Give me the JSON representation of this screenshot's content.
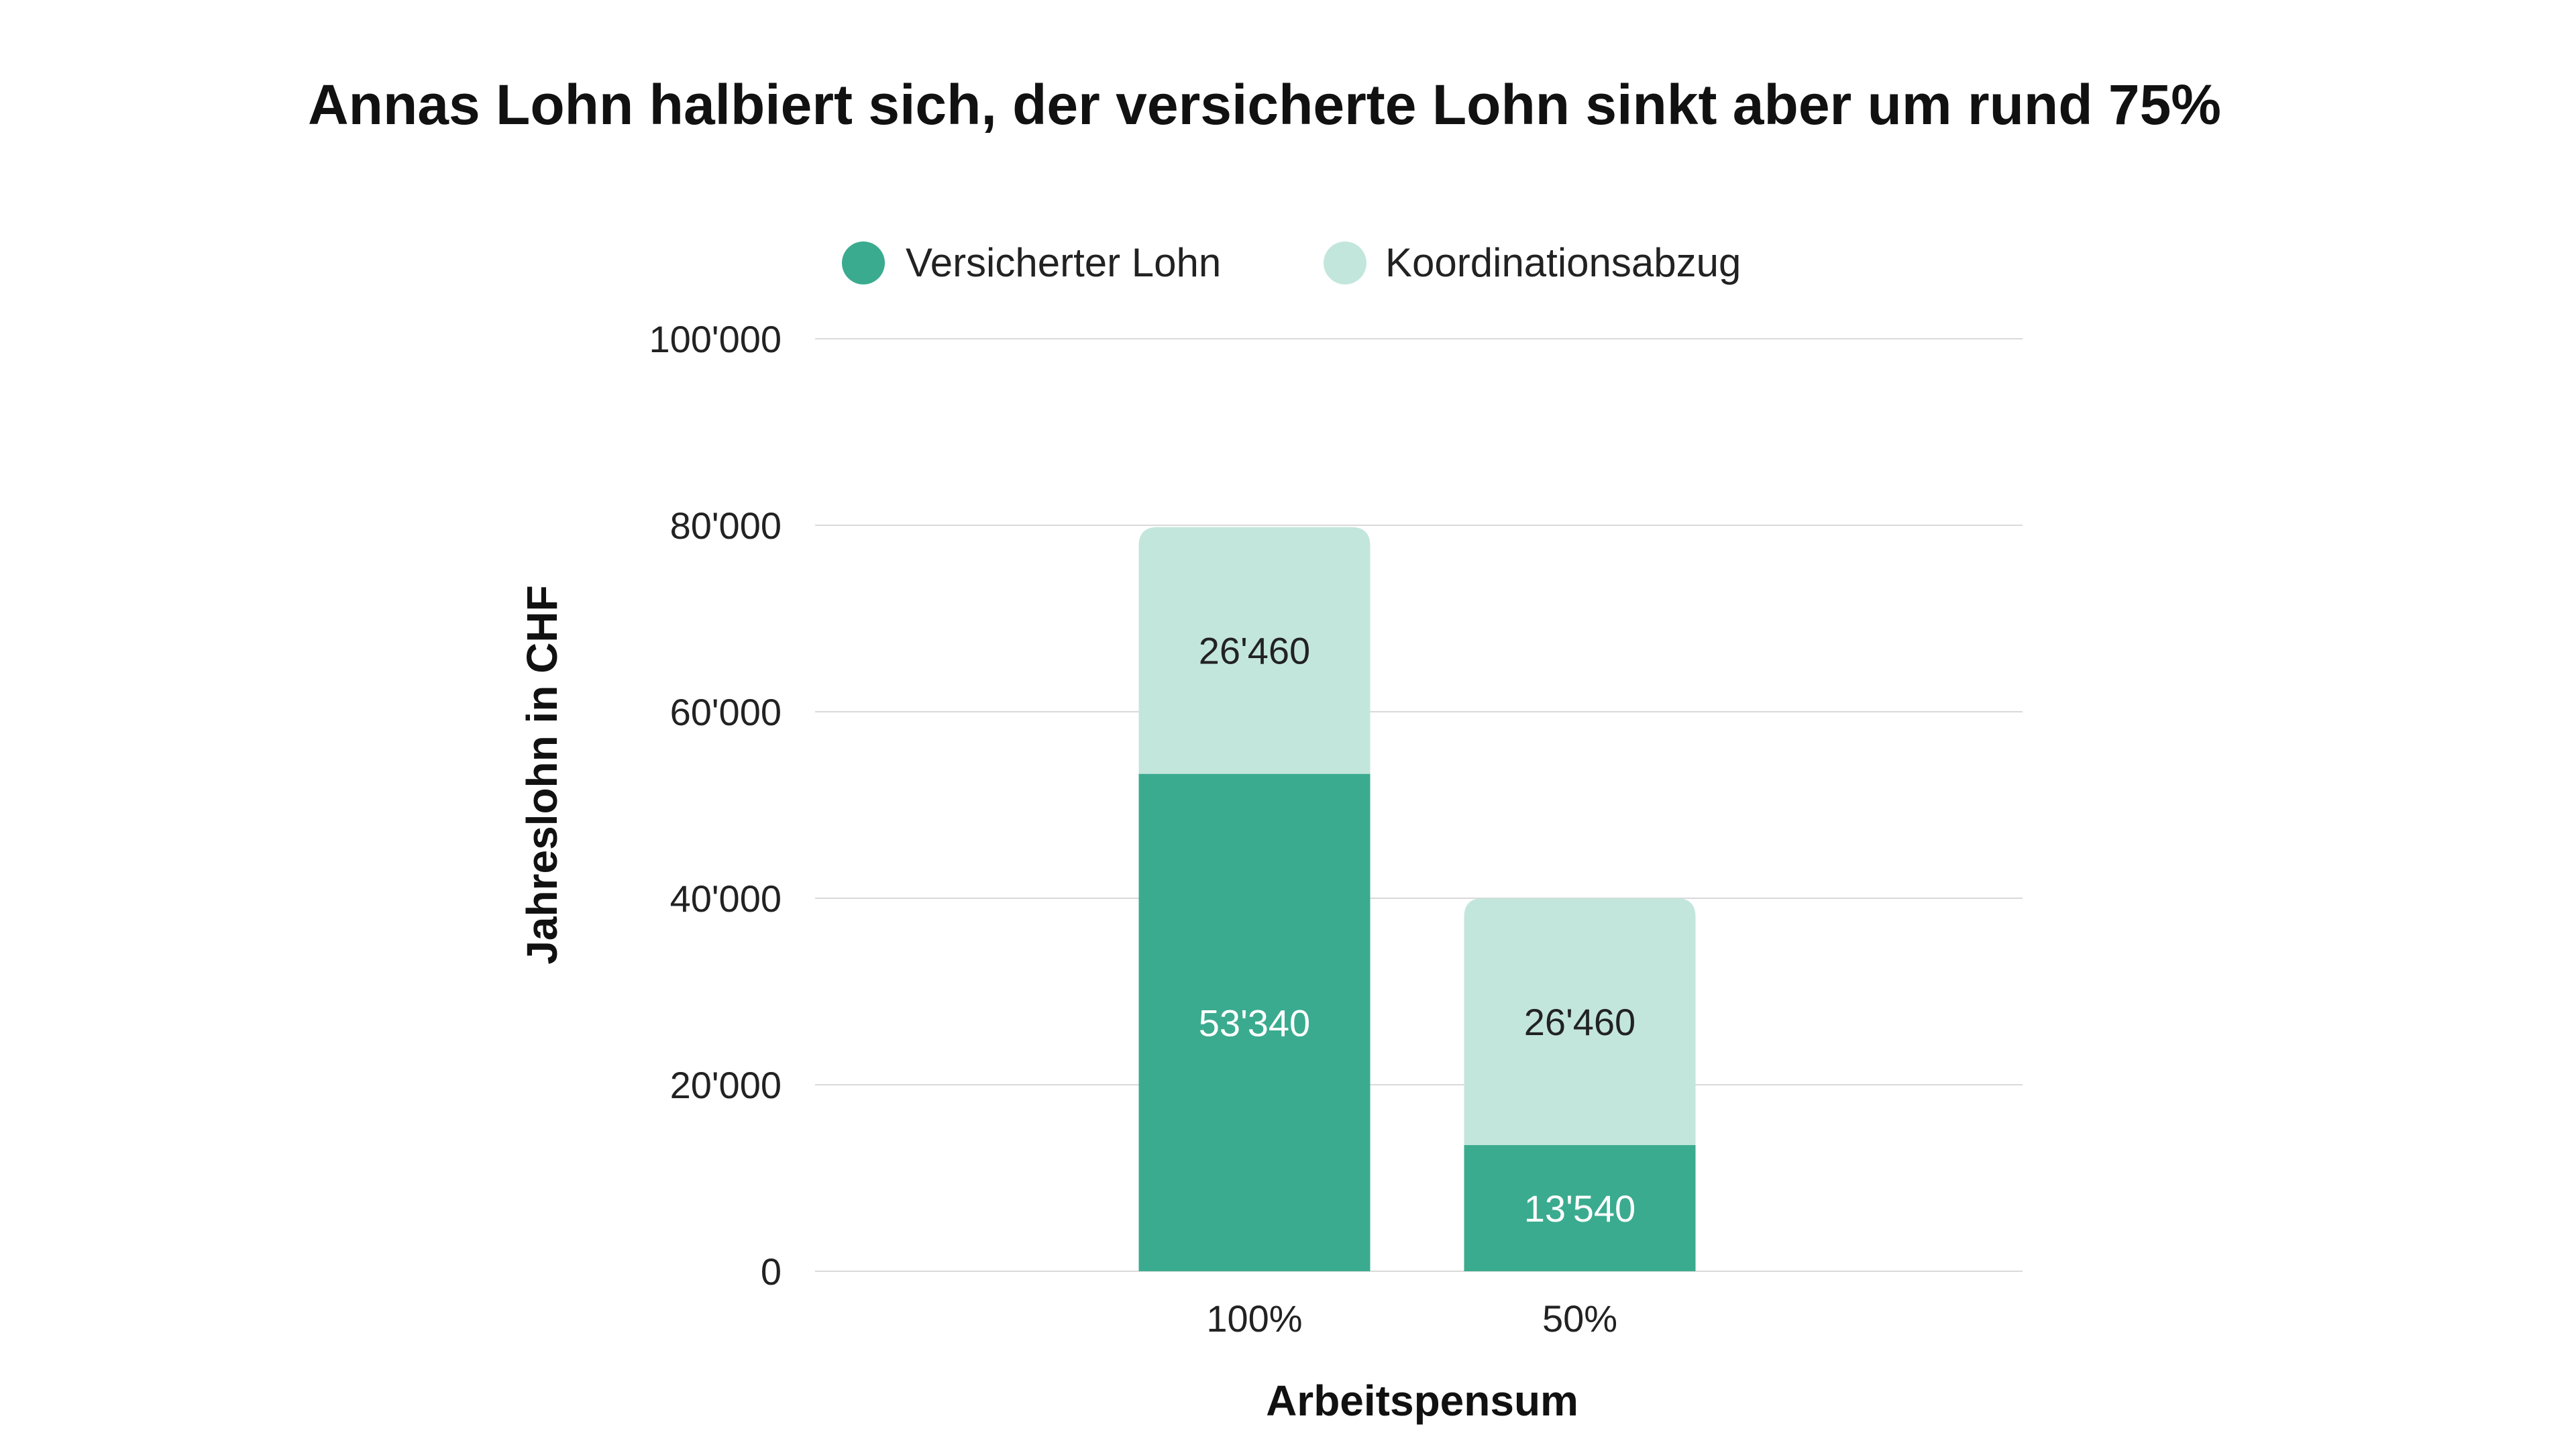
{
  "chart_data": {
    "type": "bar",
    "stacked": true,
    "title": "Annas Lohn halbiert sich, der versicherte Lohn sinkt aber um rund 75%",
    "xlabel": "Arbeitspensum",
    "ylabel": "Jahreslohn in CHF",
    "categories": [
      "100%",
      "50%"
    ],
    "series": [
      {
        "name": "Versicherter Lohn",
        "color": "#3aab8f",
        "label_color": "#ffffff",
        "values": [
          53340,
          13540
        ],
        "labels": [
          "53'340",
          "13'540"
        ]
      },
      {
        "name": "Koordinationsabzug",
        "color": "#c3e6dc",
        "label_color": "#222222",
        "values": [
          26460,
          26460
        ],
        "labels": [
          "26'460",
          "26'460"
        ]
      }
    ],
    "ylim": [
      0,
      100000
    ],
    "yticks": [
      0,
      20000,
      40000,
      60000,
      80000,
      100000
    ],
    "ytick_labels": [
      "0",
      "20'000",
      "40'000",
      "60'000",
      "80'000",
      "100'000"
    ],
    "grid": true,
    "legend_position": "top-center"
  }
}
